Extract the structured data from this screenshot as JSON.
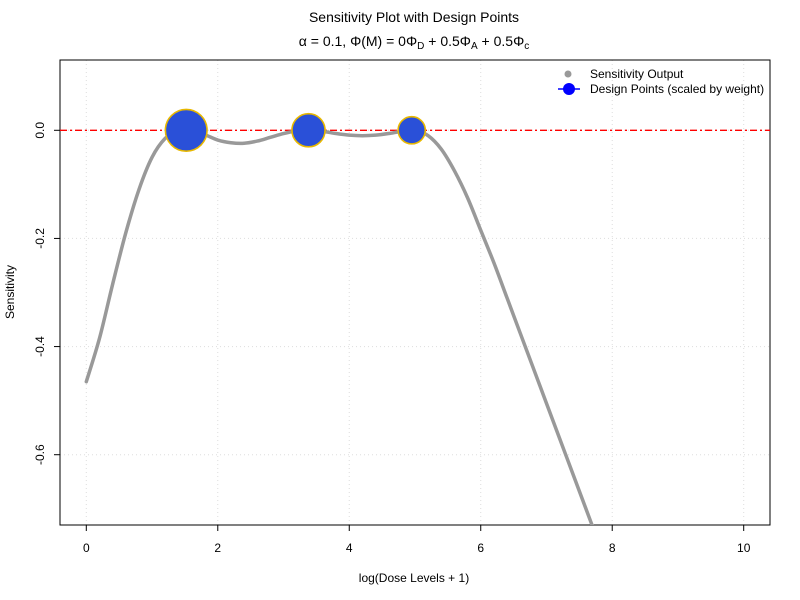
{
  "chart_data": {
    "type": "line",
    "title": "Sensitivity Plot with Design Points",
    "subtitle": {
      "alpha_sym": "α",
      "alpha_text": " = 0.1, ",
      "phi_sym": "Φ",
      "m_text": "(M) = 0",
      "sub_d": "D",
      "plus1": " + 0.5",
      "sub_a": "A",
      "plus2": " + 0.5",
      "sub_c": "c"
    },
    "xlabel": "log(Dose Levels + 1)",
    "ylabel": "Sensitivity",
    "xlim": [
      -0.4,
      10.4
    ],
    "ylim": [
      -0.73,
      0.13
    ],
    "xticks": [
      0,
      2,
      4,
      6,
      8,
      10
    ],
    "yticks": [
      0.0,
      -0.2,
      -0.4,
      -0.6
    ],
    "xtick_labels": [
      "0",
      "2",
      "4",
      "6",
      "8",
      "10"
    ],
    "ytick_labels": [
      "0.0",
      "-0.2",
      "-0.4",
      "-0.6"
    ],
    "grid": true,
    "reference_line": {
      "y": 0,
      "color": "#ff0000",
      "style": "dashed"
    },
    "series": [
      {
        "name": "Sensitivity Output",
        "color": "#999999",
        "x": [
          0,
          0.2,
          0.4,
          0.6,
          0.8,
          1.0,
          1.2,
          1.4,
          1.6,
          1.8,
          2.0,
          2.2,
          2.4,
          2.6,
          2.8,
          3.0,
          3.2,
          3.4,
          3.6,
          3.8,
          4.0,
          4.2,
          4.4,
          4.6,
          4.8,
          5.0,
          5.2,
          5.4,
          5.6,
          5.8,
          6.0,
          6.2,
          6.4,
          6.6,
          6.8,
          7.0,
          7.2,
          7.4,
          7.6,
          7.8,
          8.0
        ],
        "y": [
          -0.465,
          -0.385,
          -0.285,
          -0.19,
          -0.11,
          -0.05,
          -0.015,
          -0.001,
          -0.001,
          -0.008,
          -0.018,
          -0.023,
          -0.024,
          -0.02,
          -0.013,
          -0.006,
          -0.001,
          0.0,
          -0.002,
          -0.006,
          -0.009,
          -0.01,
          -0.009,
          -0.006,
          -0.002,
          0.0,
          -0.01,
          -0.035,
          -0.075,
          -0.125,
          -0.185,
          -0.245,
          -0.31,
          -0.375,
          -0.44,
          -0.505,
          -0.57,
          -0.635,
          -0.7,
          -0.765,
          -0.83
        ]
      },
      {
        "name": "Design Points (scaled by weight)",
        "color": "#2a50d8",
        "edge_color": "#e8b800",
        "x": [
          1.52,
          3.38,
          4.95
        ],
        "y": [
          0.0,
          0.0,
          0.0
        ],
        "weights": [
          0.45,
          0.32,
          0.23
        ]
      }
    ],
    "legend": {
      "position": "top-right",
      "entries": [
        "Sensitivity Output",
        "Design Points (scaled by weight)"
      ]
    }
  }
}
